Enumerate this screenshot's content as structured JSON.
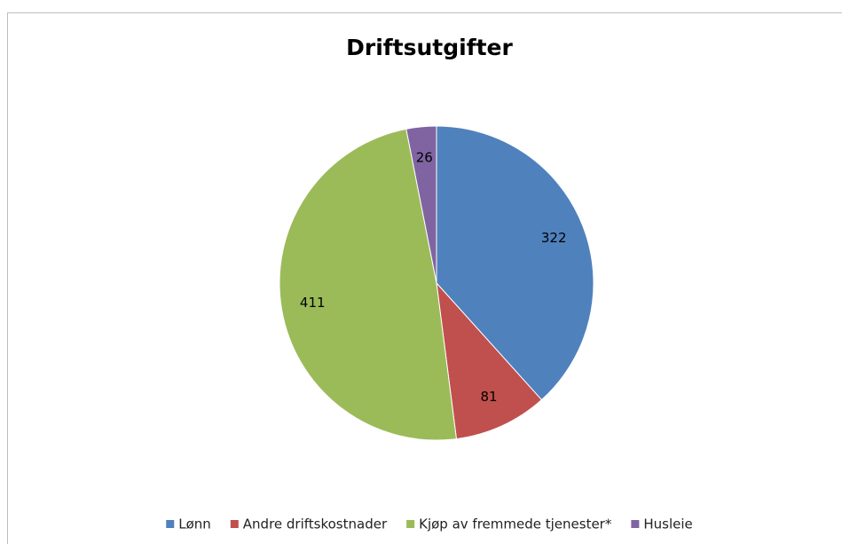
{
  "chart_data": {
    "type": "pie",
    "title": "Driftsutgifter",
    "categories": [
      "Lønn",
      "Andre driftskostnader",
      "Kjøp av fremmede tjenester*",
      "Husleie"
    ],
    "values": [
      322,
      81,
      411,
      26
    ],
    "colors": [
      "#4f81bd",
      "#c0504d",
      "#9bbb59",
      "#8064a2"
    ],
    "legend": "bottom"
  }
}
